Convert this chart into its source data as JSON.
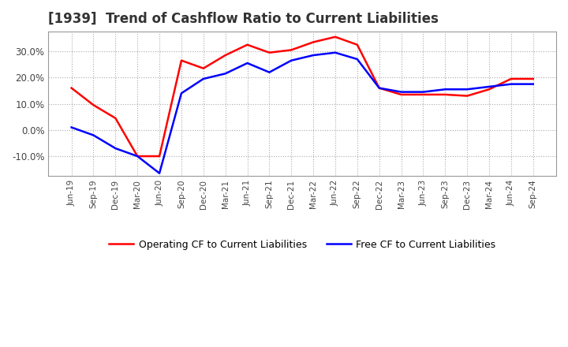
{
  "title": "[1939]  Trend of Cashflow Ratio to Current Liabilities",
  "x_labels": [
    "Jun-19",
    "Sep-19",
    "Dec-19",
    "Mar-20",
    "Jun-20",
    "Sep-20",
    "Dec-20",
    "Mar-21",
    "Jun-21",
    "Sep-21",
    "Dec-21",
    "Mar-22",
    "Jun-22",
    "Sep-22",
    "Dec-22",
    "Mar-23",
    "Jun-23",
    "Sep-23",
    "Dec-23",
    "Mar-24",
    "Jun-24",
    "Sep-24"
  ],
  "operating_cf": [
    0.16,
    0.095,
    0.045,
    -0.1,
    -0.1,
    0.265,
    0.235,
    0.285,
    0.325,
    0.295,
    0.305,
    0.335,
    0.355,
    0.325,
    0.16,
    0.135,
    0.135,
    0.135,
    0.13,
    0.155,
    0.195,
    0.195
  ],
  "free_cf": [
    0.01,
    -0.02,
    -0.07,
    -0.1,
    -0.165,
    0.14,
    0.195,
    0.215,
    0.255,
    0.22,
    0.265,
    0.285,
    0.295,
    0.27,
    0.16,
    0.145,
    0.145,
    0.155,
    0.155,
    0.165,
    0.175,
    0.175
  ],
  "operating_color": "#ff0000",
  "free_color": "#0000ff",
  "ylim": [
    -0.175,
    0.375
  ],
  "yticks": [
    -0.1,
    0.0,
    0.1,
    0.2,
    0.3
  ],
  "background_color": "#ffffff",
  "grid_color": "#aaaaaa",
  "title_fontsize": 12,
  "legend_operating": "Operating CF to Current Liabilities",
  "legend_free": "Free CF to Current Liabilities"
}
